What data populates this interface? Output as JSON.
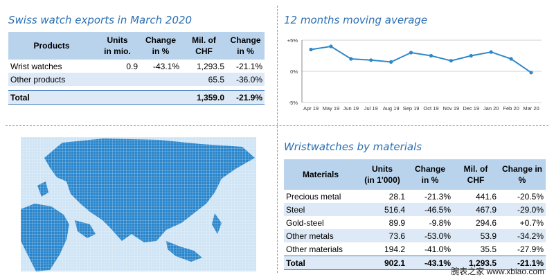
{
  "exports": {
    "title": "Swiss watch exports in March 2020",
    "headers": [
      [
        "Products",
        ""
      ],
      [
        "Units",
        "in mio."
      ],
      [
        "Change",
        "in %"
      ],
      [
        "Mil. of",
        "CHF"
      ],
      [
        "Change",
        "in %"
      ]
    ],
    "rows": [
      [
        "Wrist watches",
        "0.9",
        "-43.1%",
        "1,293.5",
        "-21.1%"
      ],
      [
        "Other products",
        "",
        "",
        "65.5",
        "-36.0%"
      ]
    ],
    "total": [
      "Total",
      "",
      "",
      "1,359.0",
      "-21.9%"
    ]
  },
  "chart_data": {
    "type": "line",
    "title": "12 months moving average",
    "x": [
      "Apr 19",
      "May 19",
      "Jun 19",
      "Jul 19",
      "Aug 19",
      "Sep 19",
      "Oct 19",
      "Nov 19",
      "Dec 19",
      "Jan 20",
      "Feb 20",
      "Mar 20"
    ],
    "y": [
      3.5,
      4.0,
      2.0,
      1.8,
      1.5,
      3.0,
      2.5,
      1.7,
      2.5,
      3.1,
      2.0,
      -0.2
    ],
    "yticks": [
      "+5%",
      "0%",
      "-5%"
    ],
    "ylim": [
      -5,
      5
    ],
    "xlabel": "",
    "ylabel": "",
    "grid": "horizontal",
    "color": "#2e88c8"
  },
  "materials": {
    "title": "Wristwatches by materials",
    "headers": [
      [
        "Materials",
        ""
      ],
      [
        "Units",
        "(in 1'000)"
      ],
      [
        "Change",
        "in %"
      ],
      [
        "Mil. of",
        "CHF"
      ],
      [
        "Change in",
        "%"
      ]
    ],
    "rows": [
      [
        "Precious metal",
        "28.1",
        "-21.3%",
        "441.6",
        "-20.5%"
      ],
      [
        "Steel",
        "516.4",
        "-46.5%",
        "467.9",
        "-29.0%"
      ],
      [
        "Gold-steel",
        "89.9",
        "-9.8%",
        "294.6",
        "+0.7%"
      ],
      [
        "Other metals",
        "73.6",
        "-53.0%",
        "53.9",
        "-34.2%"
      ],
      [
        "Other materials",
        "194.2",
        "-41.0%",
        "35.5",
        "-27.9%"
      ]
    ],
    "total": [
      "Total",
      "902.1",
      "-43.1%",
      "1,293.5",
      "-21.1%"
    ]
  },
  "map": {
    "color": "#2a86cc",
    "background": "#cfe4f5"
  },
  "watermark": "腕表之家 www.xbiao.com"
}
